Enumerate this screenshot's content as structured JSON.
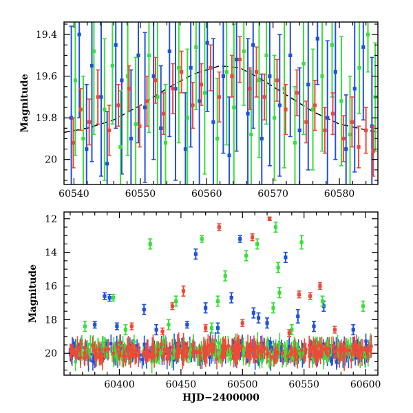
{
  "chart_data": [
    {
      "type": "scatter",
      "panel": "top",
      "xlabel": "",
      "ylabel": "Magnitude",
      "xlim": [
        60538.5,
        60585.8
      ],
      "ylim": [
        19.34,
        20.12
      ],
      "y_inverted": true,
      "x_ticks": [
        60540,
        60550,
        60560,
        60570,
        60580
      ],
      "x_tick_labels": [
        "60540",
        "60550",
        "60560",
        "60570",
        "60580"
      ],
      "y_ticks": [
        19.4,
        19.6,
        19.8,
        20.0
      ],
      "y_tick_labels": [
        "19.4",
        "19.6",
        "19.8",
        "20"
      ],
      "model_curve": {
        "style": "dashed",
        "color": "#000000",
        "x": [
          60538.5,
          60542,
          60546,
          60550,
          60554,
          60558,
          60562,
          60565,
          60568,
          60572,
          60576,
          60580,
          60585.8
        ],
        "y": [
          19.87,
          19.85,
          19.81,
          19.74,
          19.66,
          19.59,
          19.55,
          19.56,
          19.61,
          19.69,
          19.77,
          19.83,
          19.87
        ]
      },
      "series": [
        {
          "color": "#2050e0",
          "points": [
            [
              60539.6,
              19.8,
              0.44
            ],
            [
              60540.8,
              19.4,
              0.4
            ],
            [
              60541.9,
              19.95,
              0.31
            ],
            [
              60542.7,
              19.55,
              0.46
            ],
            [
              60544.1,
              19.7,
              0.38
            ],
            [
              60545.0,
              20.02,
              0.25
            ],
            [
              60546.3,
              19.45,
              0.4
            ],
            [
              60547.2,
              19.62,
              0.45
            ],
            [
              60548.6,
              19.9,
              0.33
            ],
            [
              60549.7,
              19.5,
              0.42
            ],
            [
              60550.7,
              19.75,
              0.36
            ],
            [
              60552.0,
              19.6,
              0.4
            ],
            [
              60553.1,
              19.85,
              0.3
            ],
            [
              60554.4,
              19.48,
              0.41
            ],
            [
              60555.3,
              19.66,
              0.44
            ],
            [
              60556.8,
              19.95,
              0.27
            ],
            [
              60557.6,
              19.56,
              0.38
            ],
            [
              60558.9,
              19.72,
              0.45
            ],
            [
              60560.1,
              19.44,
              0.33
            ],
            [
              60561.0,
              19.82,
              0.4
            ],
            [
              60562.5,
              19.6,
              0.37
            ],
            [
              60563.4,
              19.98,
              0.28
            ],
            [
              60564.5,
              19.52,
              0.44
            ],
            [
              60566.2,
              19.78,
              0.36
            ],
            [
              60567.0,
              19.45,
              0.4
            ],
            [
              60568.3,
              19.9,
              0.31
            ],
            [
              60569.5,
              19.6,
              0.43
            ],
            [
              60571.0,
              19.74,
              0.34
            ],
            [
              60572.6,
              19.5,
              0.39
            ],
            [
              60574.0,
              19.86,
              0.3
            ],
            [
              60575.3,
              19.64,
              0.41
            ],
            [
              60576.7,
              19.42,
              0.22
            ],
            [
              60578.2,
              19.8,
              0.37
            ],
            [
              60579.4,
              19.58,
              0.42
            ],
            [
              60581.0,
              19.95,
              0.26
            ],
            [
              60582.3,
              19.66,
              0.4
            ],
            [
              60583.6,
              19.46,
              0.35
            ],
            [
              60584.9,
              19.84,
              0.33
            ]
          ]
        },
        {
          "color": "#38e038",
          "points": [
            [
              60540.2,
              19.62,
              0.36
            ],
            [
              60541.4,
              19.9,
              0.3
            ],
            [
              60543.0,
              19.48,
              0.4
            ],
            [
              60544.6,
              19.76,
              0.34
            ],
            [
              60545.8,
              19.55,
              0.28
            ],
            [
              60547.0,
              19.94,
              0.27
            ],
            [
              60548.1,
              19.6,
              0.38
            ],
            [
              60549.3,
              19.83,
              0.32
            ],
            [
              60551.3,
              19.5,
              0.37
            ],
            [
              60552.6,
              19.7,
              0.42
            ],
            [
              60553.8,
              19.92,
              0.28
            ],
            [
              60555.8,
              19.56,
              0.36
            ],
            [
              60557.1,
              19.8,
              0.33
            ],
            [
              60558.4,
              19.46,
              0.3
            ],
            [
              60559.7,
              19.68,
              0.39
            ],
            [
              60561.6,
              19.9,
              0.29
            ],
            [
              60563.0,
              19.58,
              0.35
            ],
            [
              60564.1,
              19.75,
              0.4
            ],
            [
              60565.6,
              19.48,
              0.26
            ],
            [
              60566.7,
              19.88,
              0.31
            ],
            [
              60567.9,
              19.62,
              0.37
            ],
            [
              60569.0,
              19.5,
              0.33
            ],
            [
              60570.2,
              19.8,
              0.3
            ],
            [
              60571.7,
              19.66,
              0.38
            ],
            [
              60573.3,
              19.92,
              0.27
            ],
            [
              60574.6,
              19.54,
              0.34
            ],
            [
              60576.0,
              19.76,
              0.29
            ],
            [
              60577.4,
              19.6,
              0.36
            ],
            [
              60578.9,
              19.45,
              0.25
            ],
            [
              60580.3,
              19.72,
              0.31
            ],
            [
              60581.6,
              19.88,
              0.28
            ],
            [
              60583.0,
              19.56,
              0.22
            ],
            [
              60584.3,
              19.4,
              0.18
            ],
            [
              60585.4,
              19.7,
              0.26
            ]
          ]
        },
        {
          "color": "#f04838",
          "points": [
            [
              60539.9,
              19.92,
              0.12
            ],
            [
              60541.0,
              19.76,
              0.1
            ],
            [
              60542.3,
              19.82,
              0.11
            ],
            [
              60543.6,
              19.7,
              0.13
            ],
            [
              60545.3,
              19.86,
              0.12
            ],
            [
              60546.7,
              19.74,
              0.1
            ],
            [
              60548.3,
              19.66,
              0.11
            ],
            [
              60549.9,
              19.84,
              0.1
            ],
            [
              60551.0,
              19.72,
              0.12
            ],
            [
              60552.3,
              19.62,
              0.11
            ],
            [
              60553.5,
              19.78,
              0.1
            ],
            [
              60554.9,
              19.66,
              0.12
            ],
            [
              60556.2,
              19.58,
              0.1
            ],
            [
              60557.9,
              19.74,
              0.11
            ],
            [
              60559.2,
              19.64,
              0.1
            ],
            [
              60560.6,
              19.56,
              0.11
            ],
            [
              60561.9,
              19.7,
              0.12
            ],
            [
              60563.8,
              19.6,
              0.1
            ],
            [
              60565.0,
              19.52,
              0.11
            ],
            [
              60566.5,
              19.66,
              0.1
            ],
            [
              60567.5,
              19.58,
              0.12
            ],
            [
              60568.7,
              19.7,
              0.11
            ],
            [
              60570.6,
              19.62,
              0.1
            ],
            [
              60571.9,
              19.76,
              0.12
            ],
            [
              60573.6,
              19.68,
              0.11
            ],
            [
              60575.0,
              19.82,
              0.1
            ],
            [
              60576.3,
              19.74,
              0.12
            ],
            [
              60577.8,
              19.86,
              0.11
            ],
            [
              60579.0,
              19.78,
              0.1
            ],
            [
              60580.6,
              19.9,
              0.11
            ],
            [
              60581.9,
              19.82,
              0.12
            ],
            [
              60582.9,
              19.94,
              0.1
            ],
            [
              60584.0,
              19.86,
              0.11
            ],
            [
              60585.1,
              19.96,
              0.12
            ]
          ]
        }
      ]
    },
    {
      "type": "scatter",
      "panel": "bottom",
      "xlabel": "HJD−2400000",
      "ylabel": "Magnitude",
      "xlim": [
        60355,
        60610
      ],
      "ylim": [
        11.6,
        21.3
      ],
      "y_inverted": true,
      "x_ticks": [
        60400,
        60450,
        60500,
        60550,
        60600
      ],
      "x_tick_labels": [
        "60400",
        "60450",
        "60500",
        "60550",
        "60600"
      ],
      "y_ticks": [
        12,
        14,
        16,
        18,
        20
      ],
      "y_tick_labels": [
        "12",
        "14",
        "16",
        "18",
        "20"
      ],
      "baseline": {
        "start": 60360,
        "end": 60605,
        "magnitude": 19.9,
        "colors": [
          "#2050e0",
          "#38e038",
          "#f04838"
        ]
      },
      "series": [
        {
          "color": "#2050e0",
          "points": [
            [
              60388,
              16.6,
              0.2
            ],
            [
              60392,
              16.7,
              0.2
            ],
            [
              60420,
              17.4,
              0.3
            ],
            [
              60462,
              14.1,
              0.3
            ],
            [
              60470,
              17.3,
              0.3
            ],
            [
              60491,
              16.7,
              0.3
            ],
            [
              60498,
              13.2,
              0.2
            ],
            [
              60509,
              17.6,
              0.3
            ],
            [
              60513,
              17.9,
              0.3
            ],
            [
              60535,
              14.3,
              0.3
            ],
            [
              60545,
              17.8,
              0.4
            ],
            [
              60566,
              17.2,
              0.3
            ],
            [
              60380,
              18.3,
              0.2
            ],
            [
              60398,
              18.4,
              0.2
            ],
            [
              60430,
              18.6,
              0.3
            ],
            [
              60455,
              18.3,
              0.2
            ],
            [
              60480,
              18.5,
              0.3
            ],
            [
              60520,
              18.2,
              0.3
            ],
            [
              60558,
              18.4,
              0.3
            ],
            [
              60590,
              18.6,
              0.3
            ]
          ]
        },
        {
          "color": "#38e038",
          "points": [
            [
              60395,
              16.7,
              0.2
            ],
            [
              60425,
              13.5,
              0.3
            ],
            [
              60446,
              16.9,
              0.3
            ],
            [
              60467,
              13.2,
              0.2
            ],
            [
              60480,
              16.9,
              0.3
            ],
            [
              60486,
              15.4,
              0.3
            ],
            [
              60503,
              14.2,
              0.3
            ],
            [
              60512,
              13.5,
              0.3
            ],
            [
              60525,
              17.3,
              0.3
            ],
            [
              60527,
              12.5,
              0.3
            ],
            [
              60529,
              14.9,
              0.3
            ],
            [
              60548,
              13.4,
              0.4
            ],
            [
              60565,
              16.9,
              0.3
            ],
            [
              60598,
              17.2,
              0.3
            ],
            [
              60372,
              18.4,
              0.3
            ],
            [
              60405,
              18.6,
              0.3
            ],
            [
              60440,
              18.3,
              0.3
            ],
            [
              60475,
              18.5,
              0.3
            ],
            [
              60530,
              16.4,
              0.3
            ],
            [
              60540,
              18.6,
              0.3
            ]
          ]
        },
        {
          "color": "#f04838",
          "points": [
            [
              60443,
              17.2,
              0.2
            ],
            [
              60452,
              16.3,
              0.3
            ],
            [
              60481,
              12.5,
              0.2
            ],
            [
              60508,
              13.1,
              0.2
            ],
            [
              60522,
              12.0,
              0.1
            ],
            [
              60546,
              16.5,
              0.2
            ],
            [
              60555,
              16.6,
              0.2
            ],
            [
              60563,
              16.0,
              0.2
            ],
            [
              60410,
              18.4,
              0.2
            ],
            [
              60435,
              18.7,
              0.2
            ],
            [
              60470,
              18.5,
              0.2
            ],
            [
              60500,
              18.2,
              0.2
            ],
            [
              60538,
              18.8,
              0.2
            ],
            [
              60575,
              18.6,
              0.2
            ]
          ]
        }
      ]
    }
  ]
}
